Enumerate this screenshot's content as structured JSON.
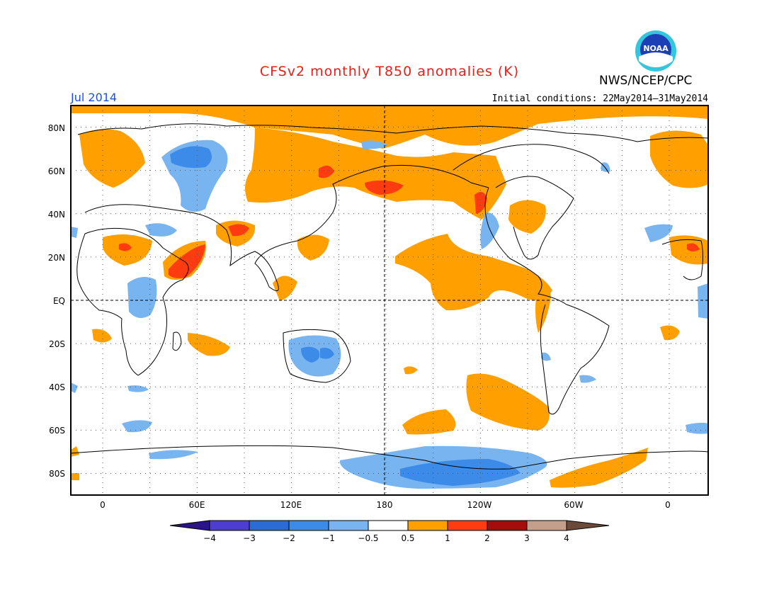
{
  "header": {
    "title": "CFSv2 monthly T850 anomalies (K)",
    "month": "Jul 2014",
    "org": "NWS/NCEP/CPC",
    "initial_conditions": "Initial conditions: 22May2014–31May2014",
    "logo_text": "NOAA"
  },
  "map": {
    "lat_ticks": [
      "80N",
      "60N",
      "40N",
      "20N",
      "EQ",
      "20S",
      "40S",
      "60S",
      "80S"
    ],
    "lon_ticks": [
      "0",
      "60E",
      "120E",
      "180",
      "120W",
      "60W",
      "0"
    ],
    "grid": "dotted every 20 degrees; dashed equator and dateline"
  },
  "colorbar": {
    "levels": [
      "−4",
      "−3",
      "−2",
      "−1",
      "−0.5",
      "0.5",
      "1",
      "2",
      "3",
      "4"
    ],
    "colors": [
      "#2b148a",
      "#4d3dd0",
      "#2a6bd6",
      "#3d8be8",
      "#78b4f0",
      "#ffffff",
      "#ff9f00",
      "#ff3c10",
      "#a50c0c",
      "#c4a08c",
      "#6b4a3a"
    ]
  }
}
